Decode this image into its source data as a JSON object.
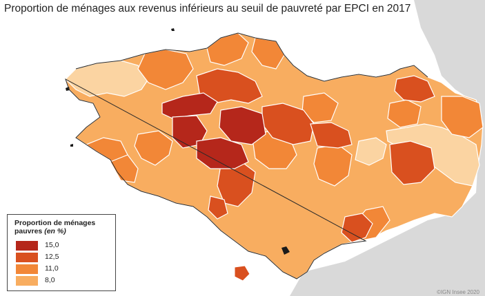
{
  "title": "Proportion de ménages aux revenus inférieurs au seuil de pauvreté par EPCI en 2017",
  "legend": {
    "title": "Proportion de ménages pauvres",
    "unit": "(en %)",
    "items": [
      {
        "label": "15,0",
        "color": "#b5271b"
      },
      {
        "label": "12,5",
        "color": "#d9501f"
      },
      {
        "label": "11,0",
        "color": "#f28737"
      },
      {
        "label": "8,0",
        "color": "#f8ad60"
      },
      {
        "label": "",
        "color": "#fbd4a2"
      }
    ]
  },
  "credit": "©IGN Insee 2020",
  "colors": {
    "background_land": "#d9d9d9",
    "sea": "#ffffff",
    "border": "#ffffff"
  }
}
